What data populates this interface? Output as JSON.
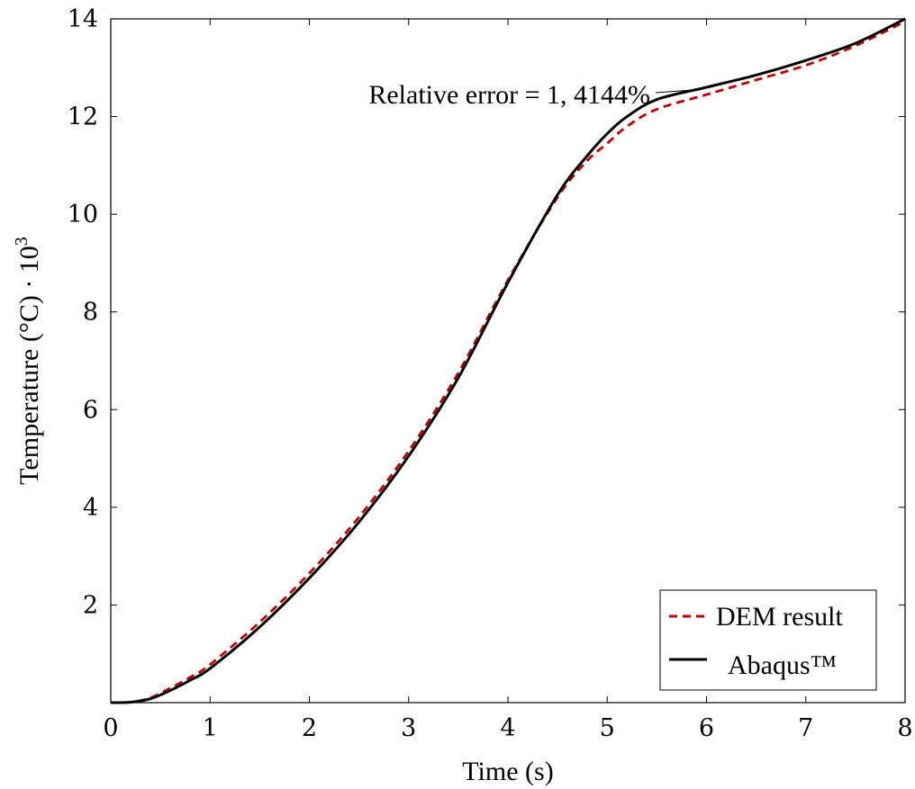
{
  "chart_data": {
    "type": "line",
    "xlabel": "Time (s)",
    "ylabel_main": "Temperature (°C) · 10",
    "ylabel_exponent": "3",
    "xlim": [
      0,
      8
    ],
    "ylim": [
      0,
      14
    ],
    "xticks": [
      "0",
      "1",
      "2",
      "3",
      "4",
      "5",
      "6",
      "7",
      "8"
    ],
    "yticks": [
      "2",
      "4",
      "6",
      "8",
      "10",
      "12",
      "14"
    ],
    "grid": false,
    "legend_position": "bottom-right",
    "annotation": {
      "text": "Relative error = 1, 4144%",
      "x": 5.9,
      "y": 12.55
    },
    "series": [
      {
        "name": "DEM result",
        "color": "#c00000",
        "style": "dashed",
        "x": [
          0,
          0.2,
          0.4,
          0.6,
          0.8,
          1.0,
          1.5,
          2.0,
          2.5,
          3.0,
          3.5,
          4.0,
          4.5,
          4.8,
          5.0,
          5.2,
          5.5,
          6.0,
          6.5,
          7.0,
          7.5,
          8.0
        ],
        "y": [
          0.0,
          0.01,
          0.1,
          0.3,
          0.52,
          0.78,
          1.65,
          2.65,
          3.8,
          5.15,
          6.75,
          8.65,
          10.35,
          11.1,
          11.45,
          11.8,
          12.15,
          12.45,
          12.75,
          13.05,
          13.45,
          13.95
        ]
      },
      {
        "name": "Abaqus™",
        "color": "#000000",
        "style": "solid",
        "x": [
          0,
          0.2,
          0.4,
          0.6,
          0.8,
          1.0,
          1.5,
          2.0,
          2.5,
          3.0,
          3.5,
          4.0,
          4.5,
          4.8,
          5.0,
          5.2,
          5.5,
          6.0,
          6.5,
          7.0,
          7.5,
          8.0
        ],
        "y": [
          0.0,
          0.01,
          0.08,
          0.25,
          0.46,
          0.7,
          1.55,
          2.55,
          3.7,
          5.05,
          6.65,
          8.6,
          10.4,
          11.2,
          11.65,
          12.0,
          12.35,
          12.6,
          12.85,
          13.15,
          13.5,
          14.0
        ]
      }
    ]
  }
}
